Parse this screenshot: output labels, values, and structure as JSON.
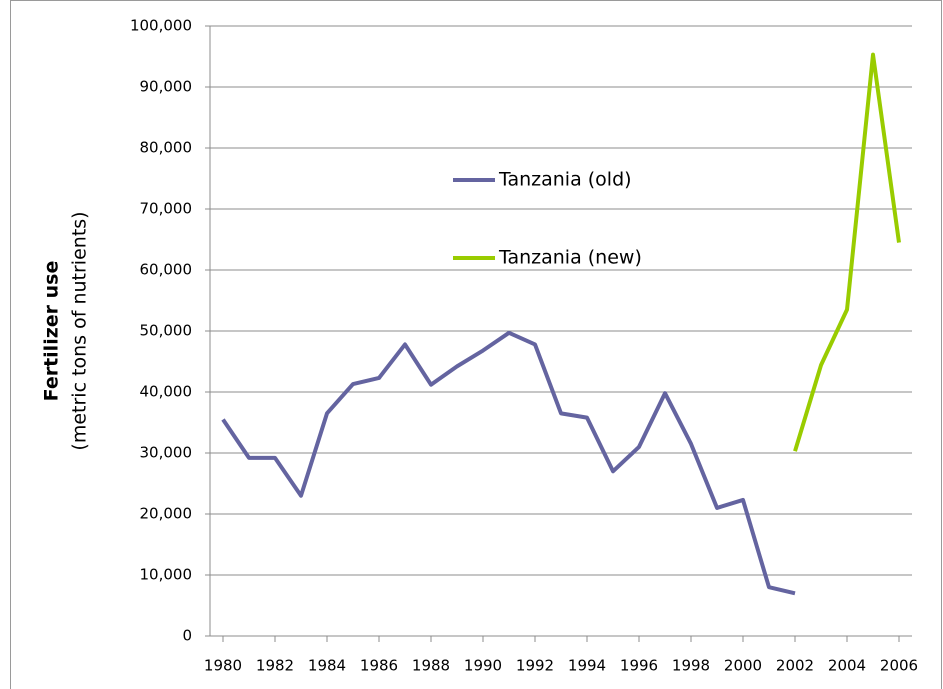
{
  "chart_data": {
    "type": "line",
    "y_label": [
      "Fertilizer use",
      "(metric tons  of nutrients)"
    ],
    "x": [
      1980,
      1981,
      1982,
      1983,
      1984,
      1985,
      1986,
      1987,
      1988,
      1989,
      1990,
      1991,
      1992,
      1993,
      1994,
      1995,
      1996,
      1997,
      1998,
      1999,
      2000,
      2001,
      2002,
      2003,
      2004,
      2005,
      2006
    ],
    "series": [
      {
        "name": "Tanzania (old)",
        "color": "#6464a0",
        "values": [
          35500,
          29200,
          29200,
          23000,
          36500,
          41300,
          42300,
          47800,
          41200,
          44200,
          46800,
          49700,
          47800,
          36500,
          35800,
          27000,
          31000,
          39800,
          31500,
          21000,
          22300,
          8000,
          7000,
          null,
          null,
          null,
          null
        ]
      },
      {
        "name": "Tanzania (new)",
        "color": "#99cc00",
        "values": [
          null,
          null,
          null,
          null,
          null,
          null,
          null,
          null,
          null,
          null,
          null,
          null,
          null,
          null,
          null,
          null,
          null,
          null,
          null,
          null,
          null,
          null,
          30300,
          44400,
          53500,
          95300,
          64500
        ]
      }
    ],
    "xlim": [
      1979.5,
      2006.5
    ],
    "xticks": [
      1980,
      1982,
      1984,
      1986,
      1988,
      1990,
      1992,
      1994,
      1996,
      1998,
      2000,
      2002,
      2004,
      2006
    ],
    "ylim": [
      0,
      100000
    ],
    "yticks": [
      0,
      {
        "value": 10000,
        "label": "10,000"
      },
      {
        "value": 20000,
        "label": "20,000"
      },
      {
        "value": 30000,
        "label": "30,000"
      },
      {
        "value": 40000,
        "label": "40,000"
      },
      {
        "value": 50000,
        "label": "50,000"
      },
      {
        "value": 60000,
        "label": "60,000"
      },
      {
        "value": 70000,
        "label": "70,000"
      },
      {
        "value": 80000,
        "label": "80,000"
      },
      {
        "value": 90000,
        "label": "90,000"
      },
      {
        "value": 100000,
        "label": "100,000"
      }
    ],
    "grid": true,
    "legend": "center"
  }
}
